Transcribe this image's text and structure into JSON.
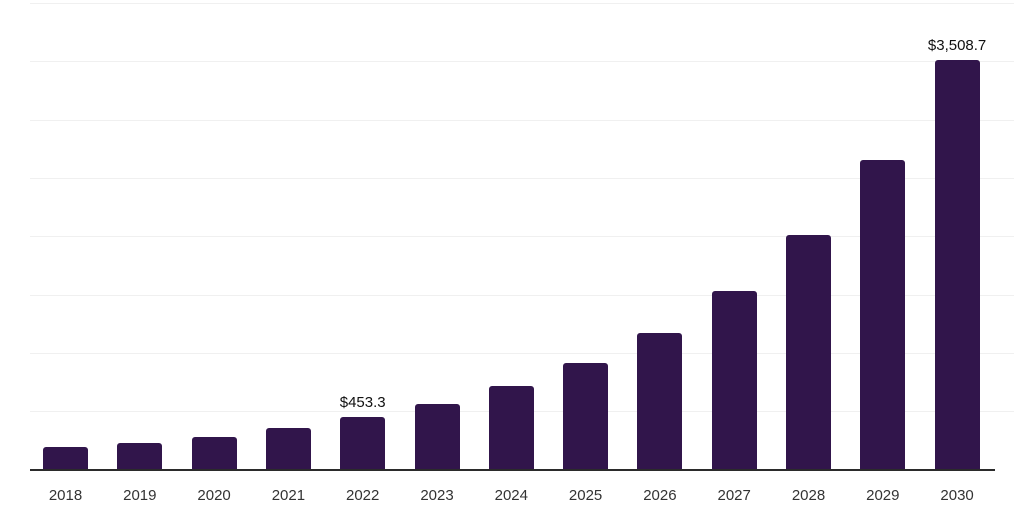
{
  "chart_data": {
    "type": "bar",
    "title": "",
    "xlabel": "",
    "ylabel": "",
    "categories": [
      "2018",
      "2019",
      "2020",
      "2021",
      "2022",
      "2023",
      "2024",
      "2025",
      "2026",
      "2027",
      "2028",
      "2029",
      "2030"
    ],
    "values": [
      194,
      225,
      276,
      353,
      453.3,
      564,
      720,
      917,
      1168,
      1530,
      2015,
      2657,
      3508.7
    ],
    "data_labels": {
      "2022": "$453.3",
      "2030": "$3,508.7"
    },
    "ylim": [
      0,
      4000
    ],
    "gridline_interval": 500,
    "grid": "horizontal-only",
    "legend": "none",
    "y_axis_tick_labels": "none",
    "colors": {
      "bar": "#31154B",
      "axis_line": "#2B2B2B",
      "gridline": "#F0F0F0",
      "tick_label": "#333333",
      "data_label": "#111111",
      "background": "#FFFFFF"
    }
  }
}
